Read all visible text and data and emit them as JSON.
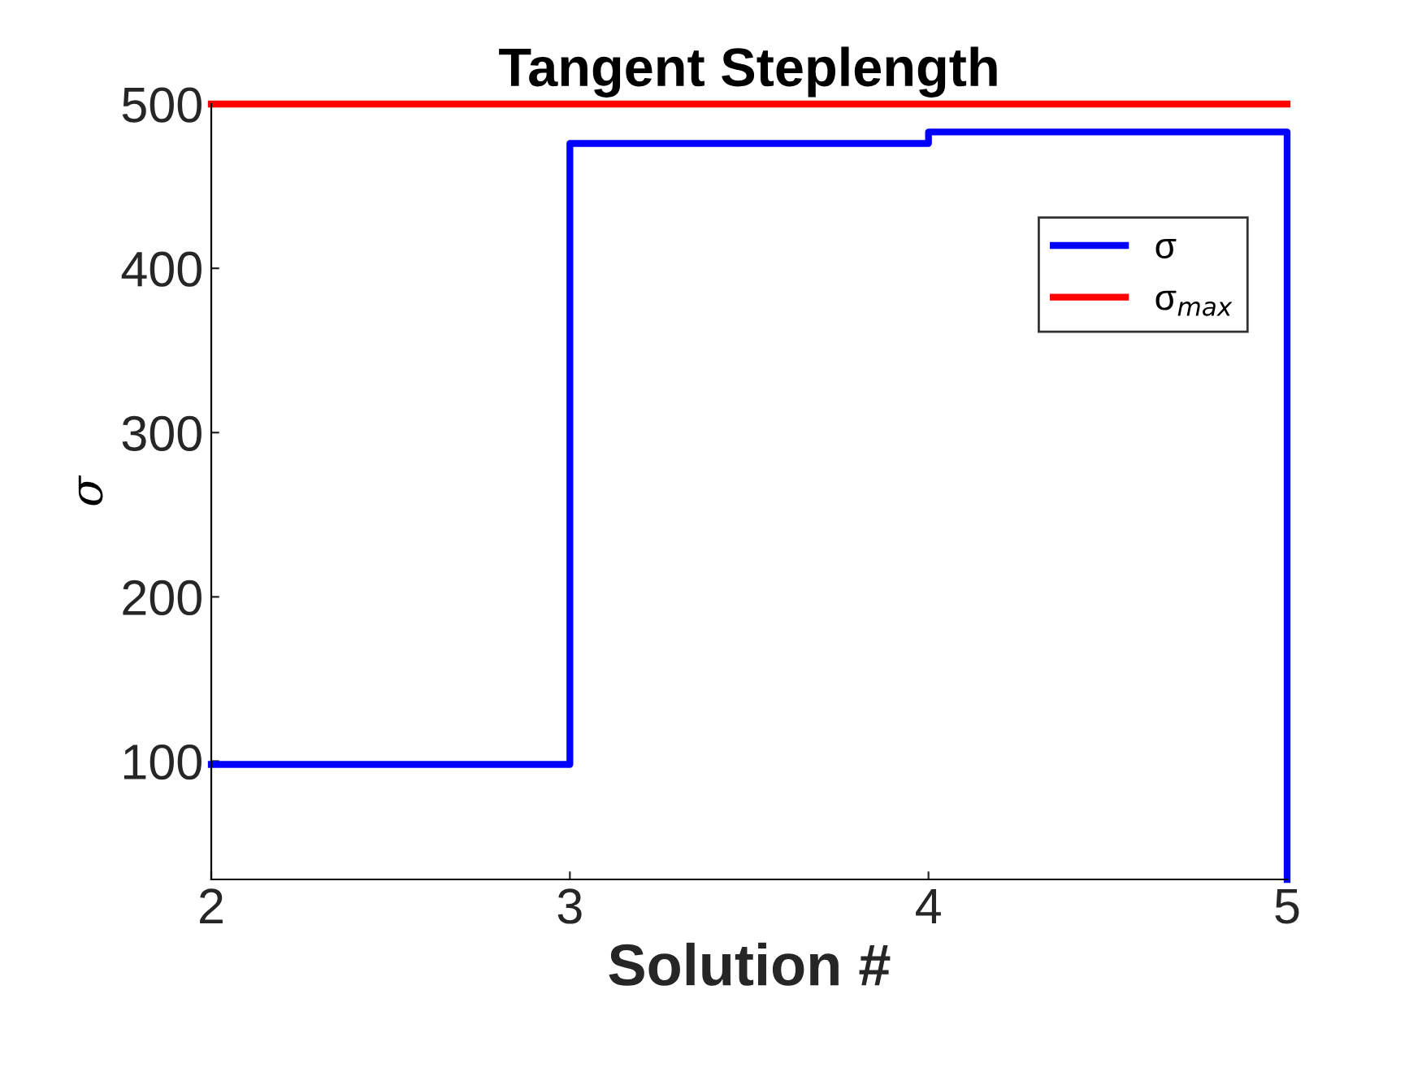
{
  "chart_data": {
    "type": "step",
    "title": "Tangent Steplength",
    "xlabel": "Solution #",
    "ylabel": "σ",
    "series": [
      {
        "name": "σ",
        "color": "#0000ff",
        "x": [
          2,
          3,
          4,
          5
        ],
        "values": [
          98,
          476,
          483,
          28
        ]
      },
      {
        "name": "σ$_{max}$",
        "color": "#ff0000",
        "type": "line",
        "x": [
          2,
          5
        ],
        "values": [
          500,
          500
        ]
      }
    ],
    "xlim": [
      2,
      5
    ],
    "ylim": [
      28,
      500
    ],
    "xticks": [
      2,
      3,
      4,
      5
    ],
    "yticks": [
      100,
      200,
      300,
      400,
      500
    ],
    "grid": false,
    "legend": "right"
  }
}
